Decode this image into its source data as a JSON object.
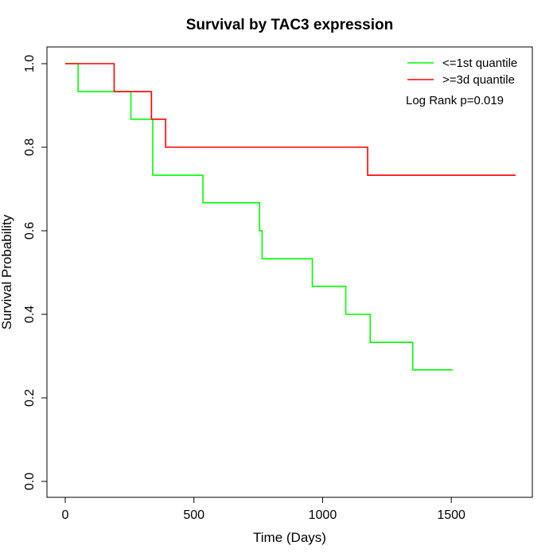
{
  "chart_data": {
    "type": "line",
    "title": "Survival by TAC3 expression",
    "xlabel": "Time (Days)",
    "ylabel": "Survival Probability",
    "xlim": [
      0,
      1750
    ],
    "ylim": [
      0,
      1
    ],
    "xticks": [
      0,
      500,
      1000,
      1500
    ],
    "yticks": [
      0.0,
      0.2,
      0.4,
      0.6,
      0.8,
      1.0
    ],
    "xtick_labels": [
      "0",
      "500",
      "1000",
      "1500"
    ],
    "ytick_labels": [
      "0.0",
      "0.2",
      "0.4",
      "0.6",
      "0.8",
      "1.0"
    ],
    "step": true,
    "grid": false,
    "legend_position": "top-right",
    "annotation": "Log Rank p=0.019",
    "series": [
      {
        "name": "<=1st quantile",
        "color": "#00ff00",
        "x": [
          0,
          50,
          255,
          340,
          535,
          755,
          765,
          960,
          1090,
          1185,
          1350,
          1505
        ],
        "y": [
          1.0,
          0.933,
          0.867,
          0.733,
          0.667,
          0.6,
          0.533,
          0.467,
          0.4,
          0.333,
          0.267,
          0.267
        ]
      },
      {
        "name": ">=3d quantile",
        "color": "#ff0000",
        "x": [
          0,
          190,
          335,
          390,
          1175,
          1750
        ],
        "y": [
          1.0,
          0.933,
          0.867,
          0.8,
          0.733,
          0.733
        ]
      }
    ]
  }
}
